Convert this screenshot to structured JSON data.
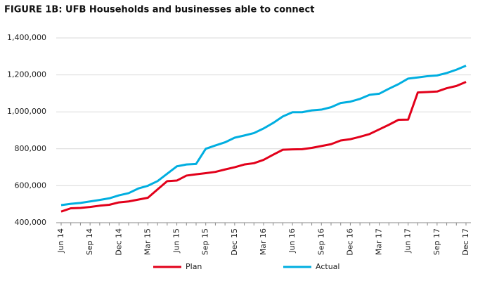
{
  "chart_data": {
    "type": "line",
    "title": "FIGURE 1B: UFB Households and businesses able to connect",
    "categories": [
      "Jun 14",
      null,
      null,
      "Sep 14",
      null,
      null,
      "Dec 14",
      null,
      null,
      "Mar 15",
      null,
      null,
      "Jun 15",
      null,
      null,
      "Sep 15",
      null,
      null,
      "Dec 15",
      null,
      null,
      "Mar 16",
      null,
      null,
      "Jun 16",
      null,
      null,
      "Sep 16",
      null,
      null,
      "Dec 16",
      null,
      null,
      "Mar 17",
      null,
      null,
      "Jun 17",
      null,
      null,
      "Sep 17",
      null,
      null,
      "Dec 17"
    ],
    "series": [
      {
        "name": "Plan",
        "color": "#e2001a",
        "values": [
          460000,
          478000,
          480000,
          485000,
          492000,
          497000,
          510000,
          515000,
          525000,
          535000,
          580000,
          625000,
          628000,
          655000,
          662000,
          668000,
          675000,
          688000,
          700000,
          715000,
          722000,
          740000,
          768000,
          795000,
          797000,
          798000,
          805000,
          815000,
          825000,
          845000,
          852000,
          865000,
          880000,
          905000,
          930000,
          957000,
          958000,
          1105000,
          1107000,
          1110000,
          1128000,
          1140000,
          1162000
        ]
      },
      {
        "name": "Actual",
        "color": "#00aee0",
        "values": [
          495000,
          502000,
          507000,
          515000,
          523000,
          532000,
          548000,
          560000,
          585000,
          600000,
          625000,
          665000,
          705000,
          715000,
          718000,
          800000,
          818000,
          835000,
          860000,
          872000,
          885000,
          910000,
          940000,
          975000,
          998000,
          998000,
          1008000,
          1012000,
          1025000,
          1048000,
          1055000,
          1070000,
          1092000,
          1098000,
          1125000,
          1150000,
          1180000,
          1186000,
          1193000,
          1197000,
          1210000,
          1228000,
          1250000
        ]
      }
    ],
    "ylim": [
      400000,
      1400000
    ],
    "yticks": [
      {
        "value": 400000,
        "label": "400,000"
      },
      {
        "value": 600000,
        "label": "600,000"
      },
      {
        "value": 800000,
        "label": "800,000"
      },
      {
        "value": 1000000,
        "label": "1,000,000"
      },
      {
        "value": 1200000,
        "label": "1,200,000"
      },
      {
        "value": 1400000,
        "label": "1,400,000"
      }
    ],
    "grid": true
  }
}
